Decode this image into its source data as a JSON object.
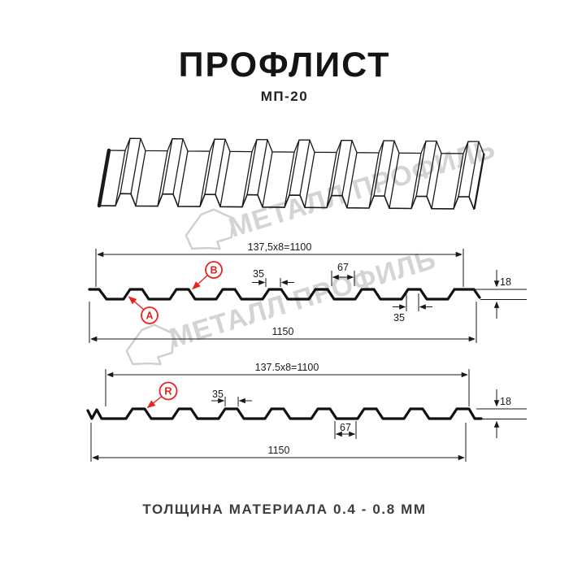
{
  "header": {
    "title": "ПРОФЛИСТ",
    "subtitle": "МП-20"
  },
  "watermark": {
    "text": "МЕТАЛЛ ПРОФИЛЬ"
  },
  "section1": {
    "dim_top": "137,5x8=1100",
    "dim_rib_top": "35",
    "dim_valley": "67",
    "dim_height": "18",
    "dim_rib_bottom": "35",
    "dim_total": "1150",
    "label_a": "A",
    "label_b": "B"
  },
  "section2": {
    "dim_top": "137.5x8=1100",
    "dim_rib_top": "35",
    "dim_valley": "67",
    "dim_height": "18",
    "dim_total": "1150",
    "label_r": "R"
  },
  "footer": {
    "caption": "ТОЛЩИНА МАТЕРИАЛА 0.4 - 0.8 ММ"
  },
  "colors": {
    "accent_red": "#e8231e",
    "line": "#1a1a1a",
    "watermark_gray": "#d4d4d4"
  }
}
